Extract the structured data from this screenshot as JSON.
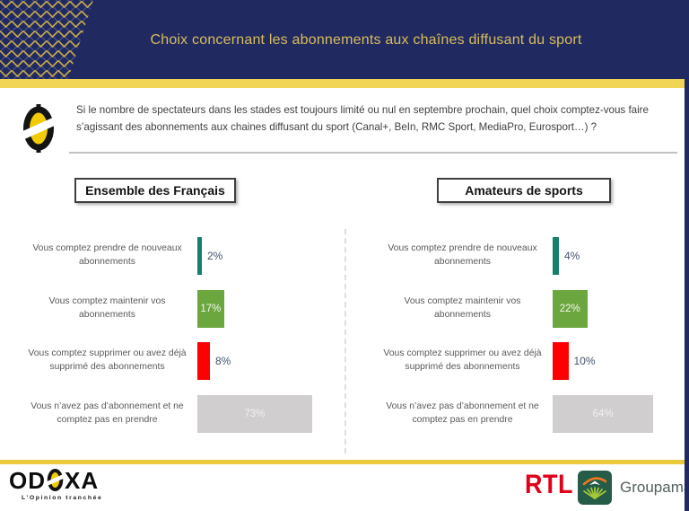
{
  "header": {
    "title": "Choix concernant les abonnements aux chaînes diffusant du sport"
  },
  "question": {
    "text": "Si le nombre de spectateurs dans les stades est toujours limité ou nul en septembre prochain, quel choix comptez-vous faire s’agissant des abonnements aux chaines diffusant du sport (Canal+, BeIn, RMC Sport, MediaPro, Eurosport…) ?"
  },
  "chart_data": [
    {
      "type": "bar",
      "orientation": "horizontal",
      "title": "Ensemble des Français",
      "categories": [
        "Vous comptez prendre de nouveaux abonnements",
        "Vous comptez maintenir vos abonnements",
        "Vous comptez supprimer ou avez déjà supprimé des abonnements",
        "Vous n’avez pas d’abonnement et ne comptez pas en prendre"
      ],
      "values": [
        2,
        17,
        8,
        73
      ],
      "unit": "%",
      "bar_colors": [
        "#17806D",
        "#6CA63F",
        "#FF0000",
        "#D0CECE"
      ],
      "xlim": [
        0,
        100
      ],
      "grid": false,
      "legend": "none",
      "value_labels": true
    },
    {
      "type": "bar",
      "orientation": "horizontal",
      "title": "Amateurs de sports",
      "categories": [
        "Vous comptez prendre de nouveaux abonnements",
        "Vous comptez maintenir vos abonnements",
        "Vous comptez supprimer ou avez déjà supprimé des abonnements",
        "Vous n’avez pas d’abonnement et ne comptez pas en prendre"
      ],
      "values": [
        4,
        22,
        10,
        64
      ],
      "unit": "%",
      "bar_colors": [
        "#17806D",
        "#6CA63F",
        "#FF0000",
        "#D0CECE"
      ],
      "xlim": [
        0,
        100
      ],
      "grid": false,
      "legend": "none",
      "value_labels": true
    }
  ],
  "colors": {
    "header_navy": "#202A60",
    "header_gold_text": "#D9BC5C",
    "band_yellow_top": "#F0D557",
    "band_yellow_bottom": "#EAC93D",
    "teal_bar": "#17806D",
    "green_bar": "#6CA63F",
    "red_bar": "#FF0000",
    "gray_bar": "#D0CECE",
    "odoxa_yellow": "#F2CB05",
    "rtl_red": "#E2001A",
    "groupama_green": "#265B47"
  },
  "footer": {
    "odoxa_prefix": "OD",
    "odoxa_suffix": "XA",
    "odoxa_tagline": "L’Opinion tranchée",
    "rtl_label": "RTL",
    "groupama_label": "Groupama"
  }
}
